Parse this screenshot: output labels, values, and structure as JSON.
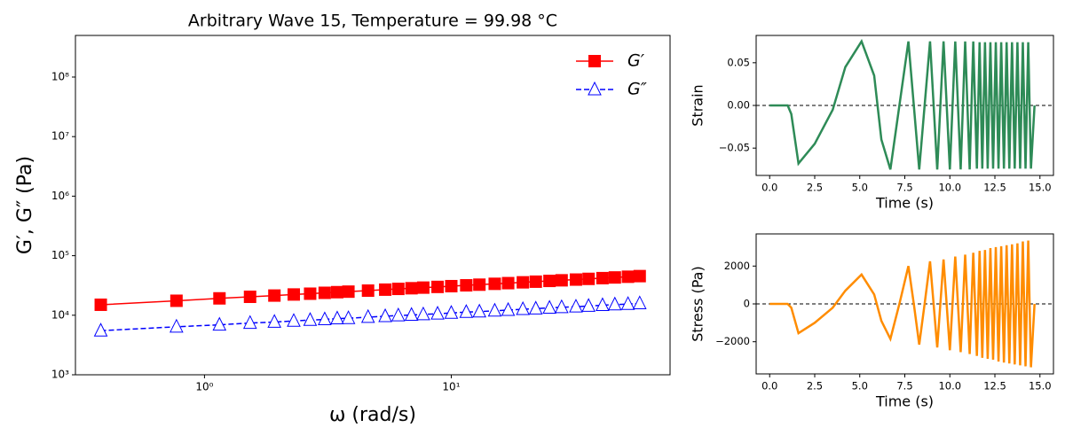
{
  "chart_data": [
    {
      "type": "line",
      "title": "Arbitrary Wave 15, Temperature = 99.98 °C",
      "xlabel": "ω (rad/s)",
      "ylabel": "G′, G″ (Pa)",
      "xscale": "log",
      "yscale": "log",
      "xlim": [
        0.3,
        77
      ],
      "ylim": [
        1000,
        500000000
      ],
      "xticks": [
        {
          "value": 1,
          "label": "10⁰"
        },
        {
          "value": 10,
          "label": "10¹"
        }
      ],
      "yticks": [
        {
          "value": 1000,
          "label": "10³"
        },
        {
          "value": 10000,
          "label": "10⁴"
        },
        {
          "value": 100000,
          "label": "10⁵"
        },
        {
          "value": 1000000,
          "label": "10⁶"
        },
        {
          "value": 10000000,
          "label": "10⁷"
        },
        {
          "value": 100000000,
          "label": "10⁸"
        }
      ],
      "legend": "upper right",
      "x": [
        0.38,
        0.77,
        1.15,
        1.53,
        1.92,
        2.3,
        2.68,
        3.07,
        3.45,
        3.83,
        4.6,
        5.4,
        6.1,
        6.9,
        7.7,
        8.8,
        10,
        11.5,
        13,
        15,
        17,
        19.5,
        22,
        25,
        28,
        32,
        36,
        41,
        46,
        52,
        58
      ],
      "series": [
        {
          "name": "G′",
          "color": "#ff0000",
          "marker": "square",
          "linestyle": "solid",
          "hollow": false,
          "values": [
            15000,
            17500,
            19200,
            20400,
            21400,
            22300,
            23000,
            23800,
            24400,
            24900,
            25900,
            26900,
            27700,
            28400,
            29100,
            29900,
            30800,
            31800,
            32600,
            33700,
            34600,
            35700,
            36600,
            37700,
            38600,
            39700,
            40800,
            42000,
            43100,
            44300,
            45400
          ]
        },
        {
          "name": "G″",
          "color": "#0000ff",
          "marker": "triangle",
          "linestyle": "dashed",
          "hollow": true,
          "values": [
            5500,
            6400,
            6900,
            7400,
            7700,
            8000,
            8300,
            8500,
            8800,
            8900,
            9300,
            9600,
            9900,
            10100,
            10300,
            10600,
            10900,
            11300,
            11500,
            11900,
            12200,
            12600,
            12900,
            13300,
            13600,
            13900,
            14300,
            14700,
            15100,
            15400,
            15800
          ]
        }
      ]
    },
    {
      "type": "line",
      "xlabel": "Time (s)",
      "ylabel": "Strain",
      "xlim": [
        -0.75,
        15.75
      ],
      "ylim": [
        -0.082,
        0.082
      ],
      "xticks": [
        {
          "value": 0,
          "label": "0.0"
        },
        {
          "value": 2.5,
          "label": "2.5"
        },
        {
          "value": 5,
          "label": "5.0"
        },
        {
          "value": 7.5,
          "label": "7.5"
        },
        {
          "value": 10,
          "label": "10.0"
        },
        {
          "value": 12.5,
          "label": "12.5"
        },
        {
          "value": 15,
          "label": "15.0"
        }
      ],
      "yticks": [
        {
          "value": -0.05,
          "label": "−0.05"
        },
        {
          "value": 0,
          "label": "0.00"
        },
        0.05
      ],
      "reference_line": 0,
      "x": [
        0,
        0.5,
        1.0,
        1.2,
        1.6,
        2.5,
        3.5,
        4.2,
        5.1,
        5.8,
        6.2,
        6.7,
        7.2,
        7.7,
        8.0,
        8.3,
        8.6,
        8.9,
        9.3,
        9.65,
        10.0,
        10.3,
        10.6,
        10.85,
        11.1,
        11.3,
        11.5,
        11.65,
        11.8,
        11.95,
        12.1,
        12.25,
        12.4,
        12.55,
        12.7,
        12.85,
        13.0,
        13.15,
        13.3,
        13.45,
        13.6,
        13.75,
        13.9,
        14.05,
        14.2,
        14.35,
        14.5,
        14.7
      ],
      "series": [
        {
          "color": "#2e8b57",
          "linestyle": "solid",
          "values": [
            0,
            0,
            0,
            -0.01,
            -0.068,
            -0.045,
            -0.005,
            0.045,
            0.075,
            0.035,
            -0.04,
            -0.075,
            0,
            0.075,
            0,
            -0.075,
            0,
            0.075,
            -0.075,
            0.075,
            -0.075,
            0.075,
            -0.075,
            0.075,
            -0.075,
            0.075,
            -0.074,
            0.074,
            -0.074,
            0.074,
            -0.074,
            0.074,
            -0.074,
            0.074,
            -0.074,
            0.074,
            -0.074,
            0.074,
            -0.074,
            0.074,
            -0.074,
            0.074,
            -0.074,
            0.074,
            -0.074,
            0.074,
            -0.074,
            0
          ]
        }
      ]
    },
    {
      "type": "line",
      "xlabel": "Time (s)",
      "ylabel": "Stress (Pa)",
      "xlim": [
        -0.75,
        15.75
      ],
      "ylim": [
        -3700,
        3700
      ],
      "xticks": [
        {
          "value": 0,
          "label": "0.0"
        },
        {
          "value": 2.5,
          "label": "2.5"
        },
        {
          "value": 5,
          "label": "5.0"
        },
        {
          "value": 7.5,
          "label": "7.5"
        },
        {
          "value": 10,
          "label": "10.0"
        },
        {
          "value": 12.5,
          "label": "12.5"
        },
        {
          "value": 15,
          "label": "15.0"
        }
      ],
      "yticks": [
        {
          "value": -2000,
          "label": "−2000"
        },
        0,
        2000
      ],
      "reference_line": 0,
      "x": [
        0,
        0.5,
        1.0,
        1.2,
        1.6,
        2.5,
        3.5,
        4.2,
        5.1,
        5.8,
        6.2,
        6.7,
        7.2,
        7.7,
        8.0,
        8.3,
        8.6,
        8.9,
        9.3,
        9.65,
        10.0,
        10.3,
        10.6,
        10.85,
        11.1,
        11.3,
        11.5,
        11.65,
        11.8,
        11.95,
        12.1,
        12.25,
        12.4,
        12.55,
        12.7,
        12.85,
        13.0,
        13.15,
        13.3,
        13.45,
        13.6,
        13.75,
        13.9,
        14.05,
        14.2,
        14.35,
        14.5,
        14.7
      ],
      "series": [
        {
          "color": "#ff8c00",
          "linestyle": "solid",
          "values": [
            0,
            0,
            0,
            -200,
            -1550,
            -1000,
            -200,
            700,
            1550,
            500,
            -900,
            -1850,
            0,
            2000,
            0,
            -2150,
            0,
            2250,
            -2300,
            2350,
            -2450,
            2500,
            -2550,
            2600,
            -2650,
            2700,
            -2750,
            2800,
            -2850,
            2850,
            -2900,
            2950,
            -2950,
            3000,
            -3050,
            3050,
            -3100,
            3100,
            -3150,
            3150,
            -3200,
            3200,
            -3250,
            3300,
            -3300,
            3350,
            -3350,
            0
          ]
        }
      ]
    }
  ]
}
